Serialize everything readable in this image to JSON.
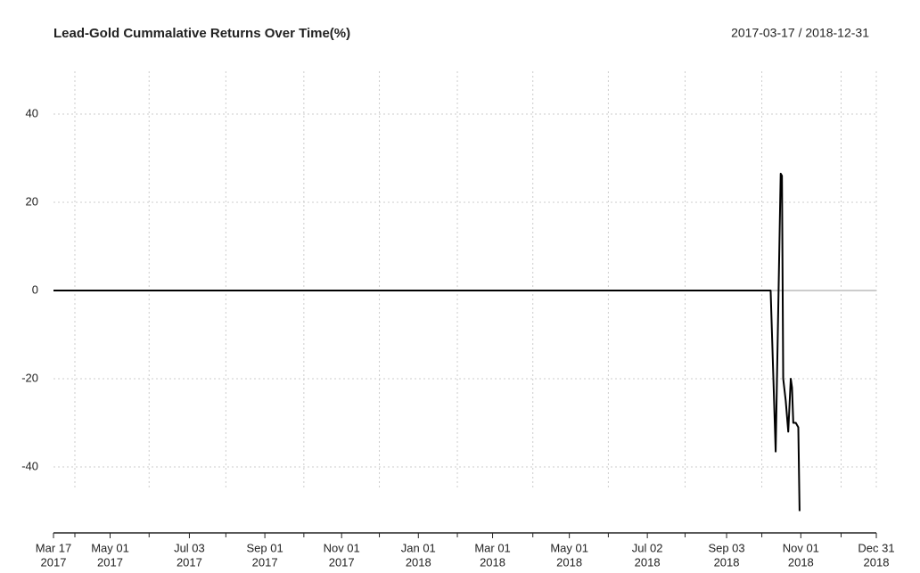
{
  "chart_data": {
    "type": "line",
    "title": "Lead-Gold Cummalative Returns Over Time(%)",
    "subtitle": "2017-03-17 / 2018-12-31",
    "x": [
      "2017-03-17",
      "2018-10-08",
      "2018-10-12",
      "2018-10-16",
      "2018-10-17",
      "2018-10-18",
      "2018-10-20",
      "2018-10-22",
      "2018-10-24",
      "2018-10-25",
      "2018-10-26",
      "2018-10-28",
      "2018-10-30",
      "2018-10-31"
    ],
    "series": [
      {
        "name": "Lead-Gold",
        "color": "#000000",
        "values": [
          0,
          0,
          -36.5,
          26.5,
          26,
          -20,
          -25,
          -32,
          -20,
          -22,
          -30,
          -30,
          -31,
          -50
        ]
      }
    ],
    "xlim": [
      "2017-03-17",
      "2018-12-31"
    ],
    "xticks": [
      {
        "value": "2017-03-17",
        "label": [
          "Mar 17",
          "2017"
        ]
      },
      {
        "value": "2017-05-01",
        "label": [
          "May 01",
          "2017"
        ]
      },
      {
        "value": "2017-07-03",
        "label": [
          "Jul 03",
          "2017"
        ]
      },
      {
        "value": "2017-09-01",
        "label": [
          "Sep 01",
          "2017"
        ]
      },
      {
        "value": "2017-11-01",
        "label": [
          "Nov 01",
          "2017"
        ]
      },
      {
        "value": "2018-01-01",
        "label": [
          "Jan 01",
          "2018"
        ]
      },
      {
        "value": "2018-03-01",
        "label": [
          "Mar 01",
          "2018"
        ]
      },
      {
        "value": "2018-05-01",
        "label": [
          "May 01",
          "2018"
        ]
      },
      {
        "value": "2018-07-02",
        "label": [
          "Jul 02",
          "2018"
        ]
      },
      {
        "value": "2018-09-03",
        "label": [
          "Sep 03",
          "2018"
        ]
      },
      {
        "value": "2018-11-01",
        "label": [
          "Nov 01",
          "2018"
        ]
      },
      {
        "value": "2018-12-31",
        "label": [
          "Dec 31",
          "2018"
        ]
      }
    ],
    "xminorticks": [
      "2017-04-03",
      "2017-06-01",
      "2017-08-01",
      "2017-10-02",
      "2017-12-01",
      "2018-02-01",
      "2018-04-02",
      "2018-06-01",
      "2018-08-01",
      "2018-10-01",
      "2018-12-03"
    ],
    "ylim": [
      -50,
      50
    ],
    "yticks": [
      -40,
      -20,
      0,
      20,
      40
    ],
    "grid": true
  }
}
